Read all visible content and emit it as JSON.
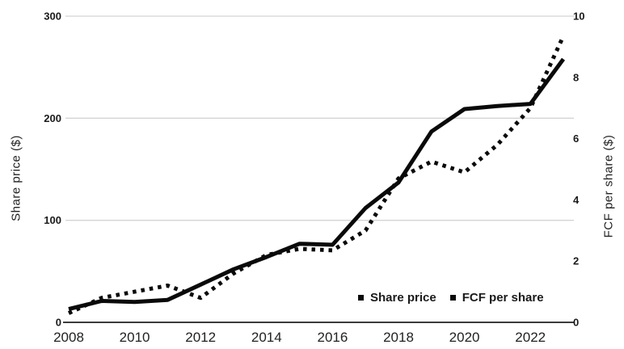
{
  "chart_data": {
    "type": "line",
    "title": "",
    "x_range": [
      2008,
      2023
    ],
    "years": [
      2008,
      2009,
      2010,
      2011,
      2012,
      2013,
      2014,
      2015,
      2016,
      2017,
      2018,
      2019,
      2020,
      2021,
      2022,
      2023
    ],
    "x_tick_years": [
      2008,
      2010,
      2012,
      2014,
      2016,
      2018,
      2020,
      2022
    ],
    "x_tick_labels": [
      "2008",
      "2010",
      "2012",
      "2014",
      "2016",
      "2018",
      "2020",
      "2022"
    ],
    "left_axis": {
      "label": "Share price ($)",
      "max": 300,
      "ticks": [
        0,
        100,
        200,
        300
      ]
    },
    "right_axis": {
      "label": "FCF per share ($)",
      "max": 10,
      "ticks": [
        0,
        2,
        4,
        6,
        8,
        10
      ]
    },
    "series": [
      {
        "name": "Share price",
        "axis": "left",
        "line_style": "solid",
        "values": [
          13,
          21,
          20,
          22,
          37,
          52,
          64,
          77,
          76,
          112,
          137,
          187,
          209,
          212,
          214,
          258
        ]
      },
      {
        "name": "FCF per share",
        "axis": "right",
        "line_style": "dotted",
        "values": [
          0.3,
          0.8,
          1.0,
          1.2,
          0.8,
          1.6,
          2.2,
          2.4,
          2.35,
          3.0,
          4.7,
          5.25,
          4.9,
          5.8,
          7.0,
          9.35
        ]
      }
    ],
    "grid": "horizontal",
    "legend_position": "inside-bottom-right",
    "colors": {
      "series": "#0a0a0a",
      "grid": "#d4d4d4",
      "axis_line": "#3c3c3c",
      "tick_label": "#1a1a1a",
      "background": "#ffffff"
    }
  }
}
